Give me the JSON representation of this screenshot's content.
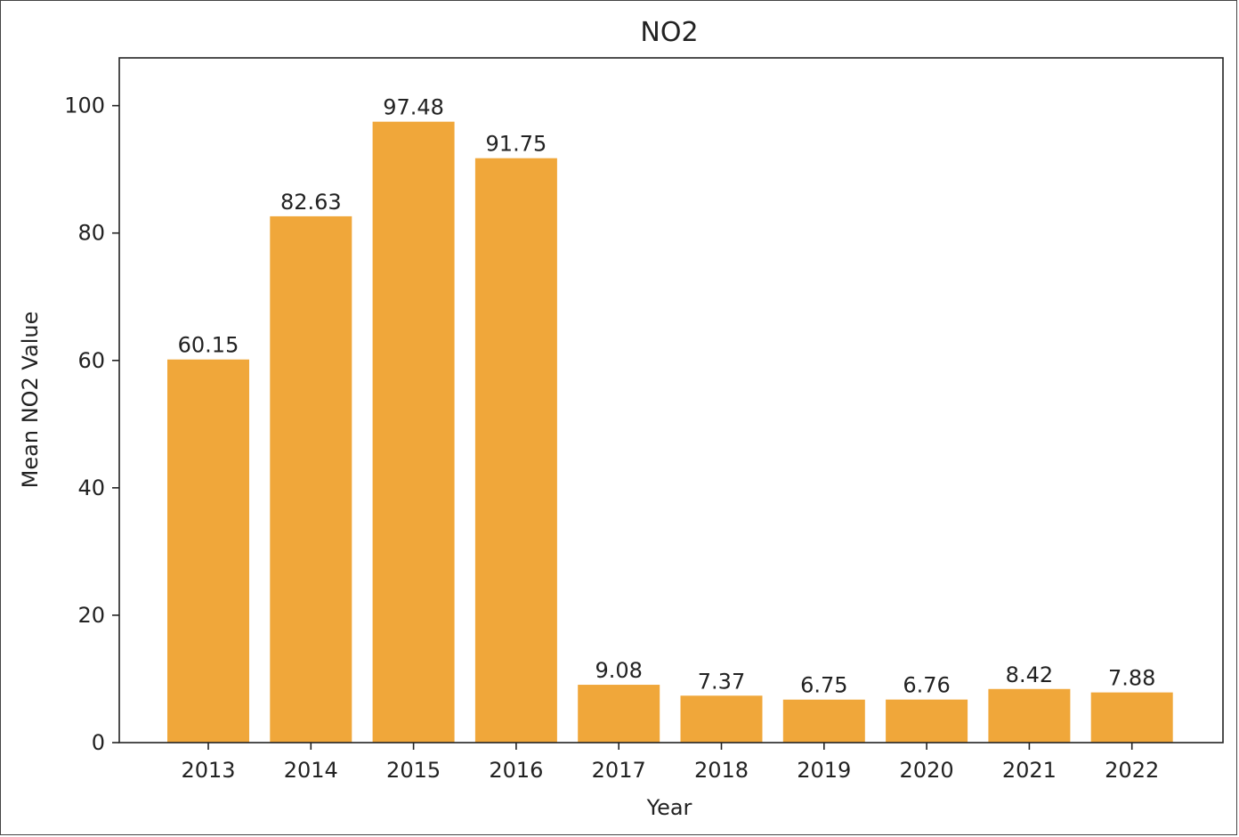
{
  "chart_data": {
    "type": "bar",
    "title": "NO2",
    "xlabel": "Year",
    "ylabel": "Mean NO2 Value",
    "categories": [
      "2013",
      "2014",
      "2015",
      "2016",
      "2017",
      "2018",
      "2019",
      "2020",
      "2021",
      "2022"
    ],
    "values": [
      60.15,
      82.63,
      97.48,
      91.75,
      9.08,
      7.37,
      6.75,
      6.76,
      8.42,
      7.88
    ],
    "data_labels": [
      "60.15",
      "82.63",
      "97.48",
      "91.75",
      "9.08",
      "7.37",
      "6.75",
      "6.76",
      "8.42",
      "7.88"
    ],
    "ylim": [
      0,
      107.5
    ],
    "yticks": [
      0,
      20,
      40,
      60,
      80,
      100
    ],
    "ytick_labels": [
      "0",
      "20",
      "40",
      "60",
      "80",
      "100"
    ],
    "grid": false,
    "bar_color": "#f0a73a"
  }
}
